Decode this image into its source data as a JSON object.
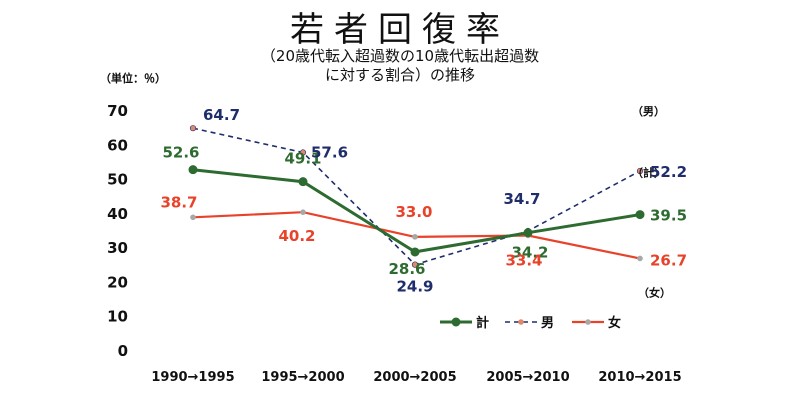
{
  "title": "若者回復率",
  "subtitle_line1": "（20歳代転入超過数の10歳代転出超過数",
  "subtitle_line2": "に対する割合）の推移",
  "chart_data": {
    "type": "line",
    "unit_label": "（単位：％）",
    "categories": [
      "1990→1995",
      "1995→2000",
      "2000→2005",
      "2005→2010",
      "2010→2015"
    ],
    "ylim": [
      0,
      70
    ],
    "yticks": [
      0,
      10,
      20,
      30,
      40,
      50,
      60,
      70
    ],
    "grid": false,
    "legend_position": "bottom-right",
    "series": [
      {
        "name": "計",
        "values": [
          52.6,
          49.1,
          28.6,
          34.2,
          39.5
        ],
        "color": "#2e6b30",
        "dash": "solid",
        "labels": [
          "52.6",
          "49.1",
          "28.6",
          "34.2",
          "39.5"
        ],
        "end_label": "（計）"
      },
      {
        "name": "男",
        "values": [
          64.7,
          57.6,
          24.9,
          34.7,
          52.2
        ],
        "color": "#1f2d6b",
        "dash": "dashed",
        "labels": [
          "64.7",
          "57.6",
          "24.9",
          "34.7",
          "52.2"
        ],
        "end_label": "（男）"
      },
      {
        "name": "女",
        "values": [
          38.7,
          40.2,
          33.0,
          33.4,
          26.7
        ],
        "color": "#e8432a",
        "dash": "solid",
        "labels": [
          "38.7",
          "40.2",
          "33.0",
          "33.4",
          "26.7"
        ],
        "end_label": "（女）"
      }
    ]
  }
}
